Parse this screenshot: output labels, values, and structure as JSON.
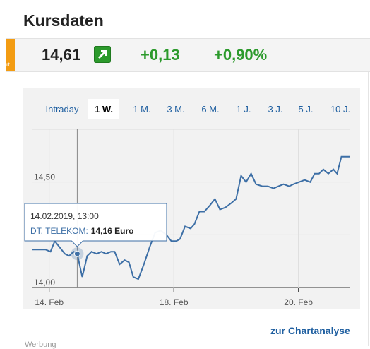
{
  "header": {
    "title": "Kursdaten"
  },
  "quote": {
    "badge": "rt",
    "price": "14,61",
    "change": "+0,13",
    "change_pct": "+0,90%"
  },
  "tabs": {
    "items": [
      "Intraday",
      "1 W.",
      "1 M.",
      "3 M.",
      "6 M.",
      "1 J.",
      "3 J.",
      "5 J.",
      "10 J."
    ],
    "selected": 1
  },
  "chart_data": {
    "type": "line",
    "x": [
      -0.28,
      -0.17,
      -0.06,
      0.02,
      0.09,
      0.17,
      0.25,
      0.32,
      0.39,
      0.45,
      0.53,
      0.61,
      0.68,
      0.76,
      0.84,
      0.91,
      0.99,
      1.05,
      1.13,
      1.21,
      1.28,
      1.35,
      1.43,
      1.52,
      1.61,
      1.7,
      1.79,
      1.88,
      1.96,
      2.04,
      2.1,
      2.18,
      2.27,
      2.33,
      2.41,
      2.49,
      2.58,
      2.66,
      2.74,
      2.83,
      2.92,
      3.0,
      3.08,
      3.16,
      3.24,
      3.32,
      3.42,
      3.51,
      3.6,
      3.68,
      3.76,
      3.85,
      3.92,
      4.01,
      4.1,
      4.19,
      4.26,
      4.33,
      4.4,
      4.48,
      4.56,
      4.62,
      4.69,
      4.76,
      4.82
    ],
    "series": [
      {
        "color": "#3d6fa6",
        "values": [
          14.18,
          14.18,
          14.18,
          14.17,
          14.22,
          14.19,
          14.16,
          14.15,
          14.17,
          14.16,
          14.05,
          14.15,
          14.17,
          14.16,
          14.17,
          14.16,
          14.17,
          14.17,
          14.11,
          14.13,
          14.12,
          14.05,
          14.04,
          14.11,
          14.19,
          14.26,
          14.27,
          14.25,
          14.22,
          14.22,
          14.23,
          14.29,
          14.28,
          14.3,
          14.36,
          14.36,
          14.39,
          14.42,
          14.37,
          14.38,
          14.4,
          14.42,
          14.53,
          14.5,
          14.54,
          14.49,
          14.48,
          14.48,
          14.47,
          14.48,
          14.49,
          14.48,
          14.49,
          14.5,
          14.51,
          14.5,
          14.54,
          14.54,
          14.56,
          14.54,
          14.56,
          14.54,
          14.62,
          14.62,
          14.62
        ]
      }
    ],
    "xlim": [
      -0.28,
      4.82
    ],
    "xticks": [
      {
        "value": 0,
        "label": "14. Feb"
      },
      {
        "value": 2,
        "label": "18. Feb"
      },
      {
        "value": 4,
        "label": "20. Feb"
      }
    ],
    "ylim": [
      14,
      14.75
    ],
    "yticks": [
      {
        "value": 14,
        "label": "14,00"
      },
      {
        "value": 14.5,
        "label": "14,50"
      }
    ],
    "grid_lines": [
      14.25,
      14.75
    ],
    "tooltip": {
      "index": 9,
      "date": "14.02.2019, 13:00",
      "label": "DT. TELEKOM:",
      "value": "14,16 Euro"
    }
  },
  "link": "zur Chartanalyse",
  "ad_label": "Werbung"
}
